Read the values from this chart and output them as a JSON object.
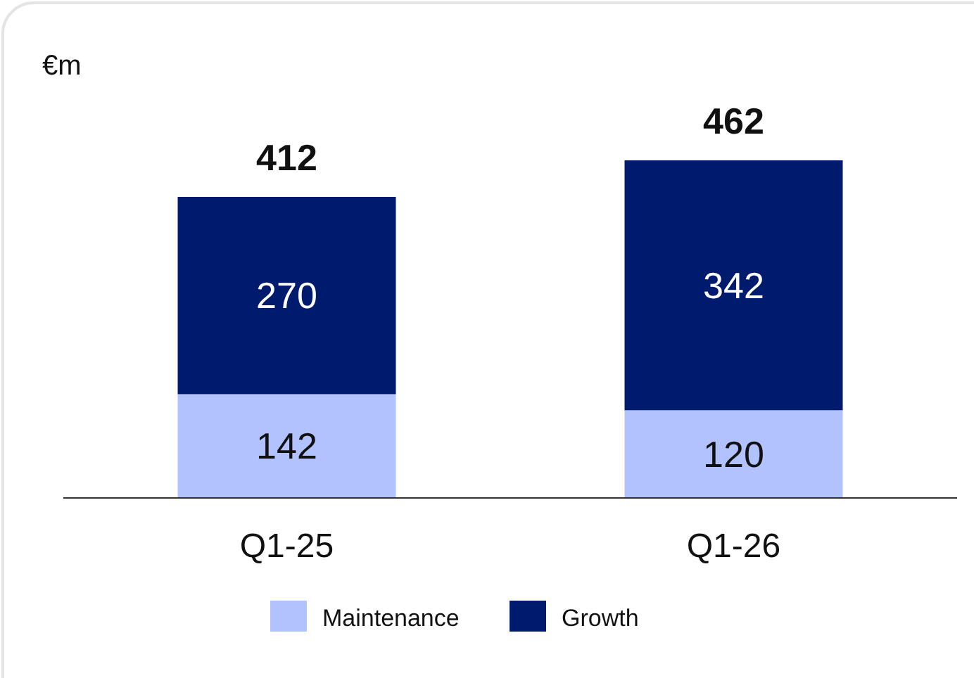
{
  "chart_data": {
    "type": "bar",
    "ylabel": "€m",
    "categories": [
      "Q1-25",
      "Q1-26"
    ],
    "stacked": true,
    "data_labels": true,
    "legend": "bottom",
    "totals": [
      "412",
      "462"
    ],
    "series": [
      {
        "name": "Maintenance",
        "color": "#b1c2ff",
        "values": [
          142,
          120
        ]
      },
      {
        "name": "Growth",
        "color": "#001a6e",
        "values": [
          270,
          342
        ]
      }
    ]
  }
}
